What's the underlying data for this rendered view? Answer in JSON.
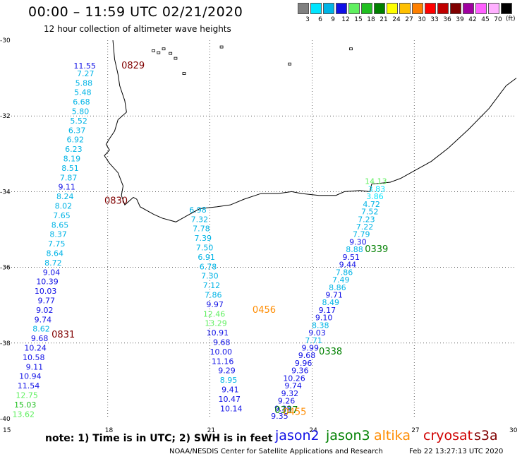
{
  "header": {
    "title": "00:00 – 11:59 UTC 02/21/2020",
    "subtitle": "12 hour collection of altimeter wave heights"
  },
  "legend": {
    "unit": "(ft)",
    "swatches": [
      {
        "color": "#808080",
        "label": "3"
      },
      {
        "color": "#00e5ff",
        "label": "6"
      },
      {
        "color": "#00b4e6",
        "label": "9"
      },
      {
        "color": "#1010e6",
        "label": "12"
      },
      {
        "color": "#60f060",
        "label": "15"
      },
      {
        "color": "#20c020",
        "label": "18"
      },
      {
        "color": "#008000",
        "label": "21"
      },
      {
        "color": "#ffff00",
        "label": "24"
      },
      {
        "color": "#ffc000",
        "label": "27"
      },
      {
        "color": "#ff8000",
        "label": "30"
      },
      {
        "color": "#ff0000",
        "label": "33"
      },
      {
        "color": "#c00000",
        "label": "36"
      },
      {
        "color": "#800000",
        "label": "39"
      },
      {
        "color": "#a000a0",
        "label": "42"
      },
      {
        "color": "#ff60ff",
        "label": "45"
      },
      {
        "color": "#ffb0ff",
        "label": "70"
      },
      {
        "color": "#000000",
        "label": ""
      }
    ]
  },
  "axes": {
    "lon_labels": [
      "15",
      "18",
      "21",
      "24",
      "27",
      "30"
    ],
    "lat_labels": [
      "-30",
      "-32",
      "-34",
      "-36",
      "-38",
      "-40"
    ],
    "lon_range": [
      15,
      30
    ],
    "lat_range": [
      -40,
      -30
    ]
  },
  "passes": [
    {
      "label": "0829",
      "color": "#800000",
      "lon": 18.4,
      "lat": -30.75
    },
    {
      "label": "0830",
      "color": "#800000",
      "lon": 17.9,
      "lat": -34.32
    },
    {
      "label": "0831",
      "color": "#800000",
      "lon": 16.35,
      "lat": -37.85
    },
    {
      "label": "0456",
      "color": "#ff8c00",
      "lon": 22.25,
      "lat": -37.2
    },
    {
      "label": "0339",
      "color": "#008000",
      "lon": 25.55,
      "lat": -35.6
    },
    {
      "label": "0338",
      "color": "#008000",
      "lon": 24.2,
      "lat": -38.3
    },
    {
      "label": "0337",
      "color": "#008000",
      "lon": 22.9,
      "lat": -39.85
    },
    {
      "label": "0455",
      "color": "#ff8c00",
      "lon": 23.15,
      "lat": -39.9
    }
  ],
  "tracks": [
    {
      "name": "track-west",
      "points": [
        {
          "lon": 17.65,
          "lat": -30.75,
          "v": "11.55",
          "c": "#1010e6"
        },
        {
          "lon": 17.6,
          "lat": -30.95,
          "v": "7.27",
          "c": "#00b4e6"
        },
        {
          "lon": 17.55,
          "lat": -31.2,
          "v": "5.88",
          "c": "#00b4e6"
        },
        {
          "lon": 17.52,
          "lat": -31.45,
          "v": "5.48",
          "c": "#00b4e6"
        },
        {
          "lon": 17.48,
          "lat": -31.7,
          "v": "6.68",
          "c": "#00b4e6"
        },
        {
          "lon": 17.45,
          "lat": -31.95,
          "v": "5.80",
          "c": "#00b4e6"
        },
        {
          "lon": 17.4,
          "lat": -32.2,
          "v": "5.52",
          "c": "#00b4e6"
        },
        {
          "lon": 17.35,
          "lat": -32.45,
          "v": "6.37",
          "c": "#00b4e6"
        },
        {
          "lon": 17.3,
          "lat": -32.7,
          "v": "6.92",
          "c": "#00b4e6"
        },
        {
          "lon": 17.25,
          "lat": -32.95,
          "v": "6.23",
          "c": "#00b4e6"
        },
        {
          "lon": 17.2,
          "lat": -33.2,
          "v": "8.19",
          "c": "#00b4e6"
        },
        {
          "lon": 17.15,
          "lat": -33.45,
          "v": "8.51",
          "c": "#00b4e6"
        },
        {
          "lon": 17.1,
          "lat": -33.7,
          "v": "7.87",
          "c": "#00b4e6"
        },
        {
          "lon": 17.05,
          "lat": -33.95,
          "v": "9.11",
          "c": "#1010e6"
        },
        {
          "lon": 17.0,
          "lat": -34.2,
          "v": "8.24",
          "c": "#00b4e6"
        },
        {
          "lon": 16.95,
          "lat": -34.45,
          "v": "8.02",
          "c": "#00b4e6"
        },
        {
          "lon": 16.9,
          "lat": -34.7,
          "v": "7.65",
          "c": "#00b4e6"
        },
        {
          "lon": 16.85,
          "lat": -34.95,
          "v": "8.65",
          "c": "#00b4e6"
        },
        {
          "lon": 16.8,
          "lat": -35.2,
          "v": "8.37",
          "c": "#00b4e6"
        },
        {
          "lon": 16.75,
          "lat": -35.45,
          "v": "7.75",
          "c": "#00b4e6"
        },
        {
          "lon": 16.7,
          "lat": -35.7,
          "v": "8.64",
          "c": "#00b4e6"
        },
        {
          "lon": 16.65,
          "lat": -35.95,
          "v": "8.72",
          "c": "#00b4e6"
        },
        {
          "lon": 16.6,
          "lat": -36.2,
          "v": "9.04",
          "c": "#1010e6"
        },
        {
          "lon": 16.55,
          "lat": -36.45,
          "v": "10.39",
          "c": "#1010e6"
        },
        {
          "lon": 16.5,
          "lat": -36.7,
          "v": "10.03",
          "c": "#1010e6"
        },
        {
          "lon": 16.45,
          "lat": -36.95,
          "v": "9.77",
          "c": "#1010e6"
        },
        {
          "lon": 16.4,
          "lat": -37.2,
          "v": "9.02",
          "c": "#1010e6"
        },
        {
          "lon": 16.35,
          "lat": -37.45,
          "v": "9.74",
          "c": "#1010e6"
        },
        {
          "lon": 16.3,
          "lat": -37.7,
          "v": "8.62",
          "c": "#00b4e6"
        },
        {
          "lon": 16.25,
          "lat": -37.95,
          "v": "9.68",
          "c": "#1010e6"
        },
        {
          "lon": 16.2,
          "lat": -38.2,
          "v": "10.24",
          "c": "#1010e6"
        },
        {
          "lon": 16.15,
          "lat": -38.45,
          "v": "10.58",
          "c": "#1010e6"
        },
        {
          "lon": 16.1,
          "lat": -38.7,
          "v": "9.11",
          "c": "#1010e6"
        },
        {
          "lon": 16.05,
          "lat": -38.95,
          "v": "10.94",
          "c": "#1010e6"
        },
        {
          "lon": 16.0,
          "lat": -39.2,
          "v": "11.54",
          "c": "#1010e6"
        },
        {
          "lon": 15.95,
          "lat": -39.45,
          "v": "12.75",
          "c": "#60f060"
        },
        {
          "lon": 15.9,
          "lat": -39.7,
          "v": "15.03",
          "c": "#20c020"
        },
        {
          "lon": 15.85,
          "lat": -39.95,
          "v": "13.62",
          "c": "#60f060"
        }
      ]
    },
    {
      "name": "track-middle",
      "points": [
        {
          "lon": 20.9,
          "lat": -34.55,
          "v": "6.98",
          "c": "#00b4e6"
        },
        {
          "lon": 20.95,
          "lat": -34.8,
          "v": "7.32",
          "c": "#00b4e6"
        },
        {
          "lon": 21.0,
          "lat": -35.05,
          "v": "7.78",
          "c": "#00b4e6"
        },
        {
          "lon": 21.05,
          "lat": -35.3,
          "v": "7.39",
          "c": "#00b4e6"
        },
        {
          "lon": 21.1,
          "lat": -35.55,
          "v": "7.50",
          "c": "#00b4e6"
        },
        {
          "lon": 21.15,
          "lat": -35.8,
          "v": "6.91",
          "c": "#00b4e6"
        },
        {
          "lon": 21.2,
          "lat": -36.05,
          "v": "6.78",
          "c": "#00b4e6"
        },
        {
          "lon": 21.25,
          "lat": -36.3,
          "v": "7.30",
          "c": "#00b4e6"
        },
        {
          "lon": 21.3,
          "lat": -36.55,
          "v": "7.12",
          "c": "#00b4e6"
        },
        {
          "lon": 21.35,
          "lat": -36.8,
          "v": "7.86",
          "c": "#00b4e6"
        },
        {
          "lon": 21.4,
          "lat": -37.05,
          "v": "9.97",
          "c": "#1010e6"
        },
        {
          "lon": 21.45,
          "lat": -37.3,
          "v": "12.46",
          "c": "#60f060"
        },
        {
          "lon": 21.5,
          "lat": -37.55,
          "v": "13.29",
          "c": "#60f060"
        },
        {
          "lon": 21.55,
          "lat": -37.8,
          "v": "10.91",
          "c": "#1010e6"
        },
        {
          "lon": 21.6,
          "lat": -38.05,
          "v": "9.68",
          "c": "#1010e6"
        },
        {
          "lon": 21.65,
          "lat": -38.3,
          "v": "10.00",
          "c": "#1010e6"
        },
        {
          "lon": 21.7,
          "lat": -38.55,
          "v": "11.16",
          "c": "#1010e6"
        },
        {
          "lon": 21.75,
          "lat": -38.8,
          "v": "9.29",
          "c": "#1010e6"
        },
        {
          "lon": 21.8,
          "lat": -39.05,
          "v": "8.95",
          "c": "#00b4e6"
        },
        {
          "lon": 21.85,
          "lat": -39.3,
          "v": "9.41",
          "c": "#1010e6"
        },
        {
          "lon": 21.9,
          "lat": -39.55,
          "v": "10.47",
          "c": "#1010e6"
        },
        {
          "lon": 21.95,
          "lat": -39.8,
          "v": "10.14",
          "c": "#1010e6"
        }
      ]
    },
    {
      "name": "track-east",
      "points": [
        {
          "lon": 26.2,
          "lat": -33.8,
          "v": "14.13",
          "c": "#60f060"
        },
        {
          "lon": 26.15,
          "lat": -34.0,
          "v": "3.83",
          "c": "#00e5ff"
        },
        {
          "lon": 26.1,
          "lat": -34.2,
          "v": "3.86",
          "c": "#00e5ff"
        },
        {
          "lon": 26.0,
          "lat": -34.4,
          "v": "4.72",
          "c": "#00b4e6"
        },
        {
          "lon": 25.95,
          "lat": -34.6,
          "v": "7.52",
          "c": "#00b4e6"
        },
        {
          "lon": 25.85,
          "lat": -34.8,
          "v": "7.23",
          "c": "#00b4e6"
        },
        {
          "lon": 25.8,
          "lat": -35.0,
          "v": "7.22",
          "c": "#00b4e6"
        },
        {
          "lon": 25.7,
          "lat": -35.2,
          "v": "7.79",
          "c": "#00b4e6"
        },
        {
          "lon": 25.6,
          "lat": -35.4,
          "v": "9.30",
          "c": "#1010e6"
        },
        {
          "lon": 25.5,
          "lat": -35.6,
          "v": "8.88",
          "c": "#00b4e6"
        },
        {
          "lon": 25.4,
          "lat": -35.8,
          "v": "9.51",
          "c": "#1010e6"
        },
        {
          "lon": 25.3,
          "lat": -36.0,
          "v": "9.44",
          "c": "#1010e6"
        },
        {
          "lon": 25.2,
          "lat": -36.2,
          "v": "7.86",
          "c": "#00b4e6"
        },
        {
          "lon": 25.1,
          "lat": -36.4,
          "v": "7.49",
          "c": "#00b4e6"
        },
        {
          "lon": 25.0,
          "lat": -36.6,
          "v": "8.86",
          "c": "#00b4e6"
        },
        {
          "lon": 24.9,
          "lat": -36.8,
          "v": "9.71",
          "c": "#1010e6"
        },
        {
          "lon": 24.8,
          "lat": -37.0,
          "v": "8.49",
          "c": "#00b4e6"
        },
        {
          "lon": 24.7,
          "lat": -37.2,
          "v": "9.17",
          "c": "#1010e6"
        },
        {
          "lon": 24.6,
          "lat": -37.4,
          "v": "9.10",
          "c": "#1010e6"
        },
        {
          "lon": 24.5,
          "lat": -37.6,
          "v": "8.38",
          "c": "#00b4e6"
        },
        {
          "lon": 24.4,
          "lat": -37.8,
          "v": "9.03",
          "c": "#1010e6"
        },
        {
          "lon": 24.3,
          "lat": -38.0,
          "v": "7.71",
          "c": "#00b4e6"
        },
        {
          "lon": 24.2,
          "lat": -38.2,
          "v": "9.99",
          "c": "#1010e6"
        },
        {
          "lon": 24.1,
          "lat": -38.4,
          "v": "9.68",
          "c": "#1010e6"
        },
        {
          "lon": 24.0,
          "lat": -38.6,
          "v": "9.96",
          "c": "#1010e6"
        },
        {
          "lon": 23.9,
          "lat": -38.8,
          "v": "9.36",
          "c": "#1010e6"
        },
        {
          "lon": 23.8,
          "lat": -39.0,
          "v": "10.26",
          "c": "#1010e6"
        },
        {
          "lon": 23.7,
          "lat": -39.2,
          "v": "9.74",
          "c": "#1010e6"
        },
        {
          "lon": 23.6,
          "lat": -39.4,
          "v": "9.32",
          "c": "#1010e6"
        },
        {
          "lon": 23.5,
          "lat": -39.6,
          "v": "9.26",
          "c": "#1010e6"
        },
        {
          "lon": 23.4,
          "lat": -39.8,
          "v": "9.38",
          "c": "#1010e6"
        },
        {
          "lon": 23.3,
          "lat": -40.0,
          "v": "9.35",
          "c": "#1010e6"
        }
      ]
    }
  ],
  "note": "note: 1) Time is in UTC; 2) SWH is in feet",
  "satellites": [
    {
      "name": "jason2",
      "color": "#1010e6"
    },
    {
      "name": "jason3",
      "color": "#008000"
    },
    {
      "name": "altika",
      "color": "#ff8c00"
    },
    {
      "name": "cryosat",
      "color": "#d00000"
    },
    {
      "name": "s3a",
      "color": "#800000"
    }
  ],
  "footer": "NOAA/NESDIS Center for Satellite Applications and Research",
  "timestamp": "Feb 22 13:27:13 UTC 2020"
}
